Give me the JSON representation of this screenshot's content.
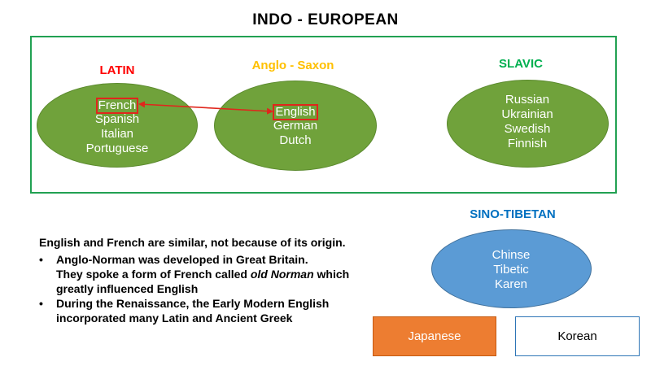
{
  "title": "INDO - EUROPEAN",
  "groups": {
    "latin": {
      "label": "LATIN",
      "color": "#ff0000",
      "languages": [
        "French",
        "Spanish",
        "Italian",
        "Portuguese"
      ]
    },
    "anglo_saxon": {
      "label": "Anglo - Saxon",
      "color": "#ffc000",
      "languages": [
        "English",
        "German",
        "Dutch"
      ]
    },
    "slavic": {
      "label": "SLAVIC",
      "color": "#00b050",
      "languages": [
        "Russian",
        "Ukrainian",
        "Swedish",
        "Finnish"
      ]
    }
  },
  "sino_tibetan": {
    "label": "SINO-TIBETAN",
    "color": "#0070c0",
    "languages": [
      "Chinse",
      "Tibetic",
      "Karen"
    ]
  },
  "boxes": {
    "japanese": "Japanese",
    "korean": "Korean"
  },
  "notes": {
    "heading": "English and French are similar, not because of its origin.",
    "bullet1_line1": "Anglo-Norman was developed in Great Britain.",
    "bullet1_line2_pre": "They spoke a form of French called ",
    "bullet1_line2_italic": "old Norman",
    "bullet1_line2_post": " which",
    "bullet1_line3": "greatly influenced English",
    "bullet2_line1": "During the Renaissance, the Early Modern English",
    "bullet2_line2": "incorporated many Latin and Ancient Greek",
    "bullet_symbol": "•"
  },
  "colors": {
    "ellipse_green": "#70a23b",
    "ellipse_blue": "#5b9bd5",
    "box_orange": "#ed7d31",
    "box_border_blue": "#2e75b6",
    "highlight_red": "#e0261c",
    "frame_green": "#21a152"
  }
}
